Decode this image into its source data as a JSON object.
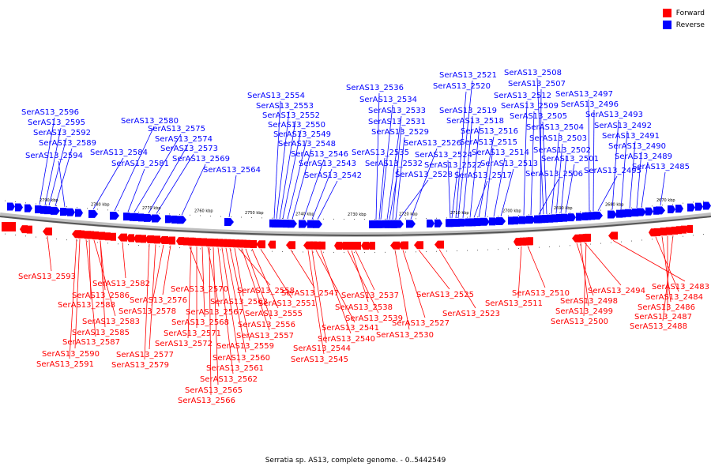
{
  "legend": {
    "forward_label": "Forward",
    "reverse_label": "Reverse",
    "forward_color": "#ff0000",
    "reverse_color": "#0000ff"
  },
  "caption": "Serratia sp. AS13, complete genome. - 0..5442549",
  "scale_labels": [
    "2790 kbp",
    "2780 kbp",
    "2770 kbp",
    "2760 kbp",
    "2750 kbp",
    "2740 kbp",
    "2730 kbp",
    "2720 kbp",
    "2710 kbp",
    "2700 kbp",
    "2690 kbp",
    "2680 kbp",
    "2670 kbp"
  ],
  "reverse_genes": [
    "SerAS13_2596",
    "SerAS13_2595",
    "SerAS13_2592",
    "SerAS13_2589",
    "SerAS13_2594",
    "SerAS13_2584",
    "SerAS13_2580",
    "SerAS13_2575",
    "SerAS13_2574",
    "SerAS13_2573",
    "SerAS13_2581",
    "SerAS13_2569",
    "SerAS13_2564",
    "SerAS13_2554",
    "SerAS13_2553",
    "SerAS13_2552",
    "SerAS13_2550",
    "SerAS13_2549",
    "SerAS13_2548",
    "SerAS13_2546",
    "SerAS13_2543",
    "SerAS13_2542",
    "SerAS13_2536",
    "SerAS13_2534",
    "SerAS13_2533",
    "SerAS13_2531",
    "SerAS13_2529",
    "SerAS13_2535",
    "SerAS13_2532",
    "SerAS13_2526",
    "SerAS13_2528",
    "SerAS13_2521",
    "SerAS13_2520",
    "SerAS13_2519",
    "SerAS13_2518",
    "SerAS13_2516",
    "SerAS13_2524",
    "SerAS13_2522",
    "SerAS13_2515",
    "SerAS13_2514",
    "SerAS13_2517",
    "SerAS13_2513",
    "SerAS13_2508",
    "SerAS13_2507",
    "SerAS13_2512",
    "SerAS13_2509",
    "SerAS13_2505",
    "SerAS13_2504",
    "SerAS13_2503",
    "SerAS13_2502",
    "SerAS13_2501",
    "SerAS13_2506",
    "SerAS13_2497",
    "SerAS13_2496",
    "SerAS13_2493",
    "SerAS13_2492",
    "SerAS13_2491",
    "SerAS13_2490",
    "SerAS13_2489",
    "SerAS13_2495",
    "SerAS13_2485"
  ],
  "forward_genes": [
    "SerAS13_2593",
    "SerAS13_2582",
    "SerAS13_2586",
    "SerAS13_2588",
    "SerAS13_2583",
    "SerAS13_2585",
    "SerAS13_2587",
    "SerAS13_2590",
    "SerAS13_2591",
    "SerAS13_2570",
    "SerAS13_2576",
    "SerAS13_2578",
    "SerAS13_2577",
    "SerAS13_2579",
    "SerAS13_2558",
    "SerAS13_2563",
    "SerAS13_2567",
    "SerAS13_2568",
    "SerAS13_2571",
    "SerAS13_2572",
    "SerAS13_2559",
    "SerAS13_2560",
    "SerAS13_2561",
    "SerAS13_2562",
    "SerAS13_2565",
    "SerAS13_2566",
    "SerAS13_2551",
    "SerAS13_2555",
    "SerAS13_2556",
    "SerAS13_2557",
    "SerAS13_2547",
    "SerAS13_2541",
    "SerAS13_2544",
    "SerAS13_2545",
    "SerAS13_2540",
    "SerAS13_2537",
    "SerAS13_2538",
    "SerAS13_2539",
    "SerAS13_2527",
    "SerAS13_2530",
    "SerAS13_2525",
    "SerAS13_2523",
    "SerAS13_2510",
    "SerAS13_2511",
    "SerAS13_2494",
    "SerAS13_2498",
    "SerAS13_2499",
    "SerAS13_2500",
    "SerAS13_2483",
    "SerAS13_2484",
    "SerAS13_2486",
    "SerAS13_2487",
    "SerAS13_2488"
  ]
}
